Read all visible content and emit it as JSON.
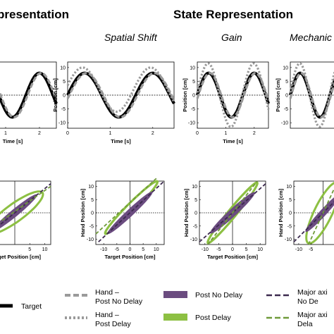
{
  "titles": {
    "left_cut": "presentation",
    "center": "State Representation",
    "col2": "Spatial Shift",
    "col3": "Gain",
    "col4_cut": "Mechanic"
  },
  "colors": {
    "target": "#000000",
    "hand": "#9a9a9a",
    "post_no_delay": "#6b4c80",
    "post_delay": "#8dc043",
    "major_axis_no_delay": "#3c2a4e",
    "major_axis_delay": "#6f9a3a"
  },
  "chart_data": [
    {
      "type": "line",
      "panel": "time-col1-partial",
      "xlabel": "Time [s]",
      "x_ticks": [
        "1",
        "2"
      ],
      "series": [
        {
          "name": "Target",
          "style": "solid-thick",
          "amplitude": 8,
          "phase_shift": 0
        },
        {
          "name": "Hand – Post No Delay",
          "style": "dashed",
          "amplitude": 8,
          "phase_shift": 0.05
        }
      ]
    },
    {
      "type": "line",
      "panel": "time-spatial-shift",
      "xlabel": "Time [s]",
      "ylabel": "Position [cm]",
      "xlim": [
        0,
        2.5
      ],
      "ylim": [
        -12,
        12
      ],
      "x_ticks": [
        "0",
        "1",
        "2"
      ],
      "y_ticks": [
        "10",
        "5",
        "0",
        "-5",
        "-10"
      ],
      "series": [
        {
          "name": "Target",
          "style": "solid-thick",
          "amplitude": 8,
          "offset": 0,
          "phase_shift": 0
        },
        {
          "name": "Hand – Post No Delay",
          "style": "dashed",
          "amplitude": 8,
          "offset": 0,
          "phase_shift": 0.04
        },
        {
          "name": "Hand – Post Delay",
          "style": "dotted",
          "amplitude": 8,
          "offset": 2,
          "phase_shift": -0.05
        }
      ]
    },
    {
      "type": "line",
      "panel": "time-gain",
      "xlabel": "Time [s]",
      "ylabel": "Position [cm]",
      "xlim": [
        0,
        2.5
      ],
      "ylim": [
        -12,
        12
      ],
      "x_ticks": [
        "0",
        "1",
        "2"
      ],
      "y_ticks": [
        "10",
        "5",
        "0",
        "-5",
        "-10"
      ],
      "series": [
        {
          "name": "Target",
          "style": "solid-thick",
          "amplitude": 8,
          "offset": 0,
          "phase_shift": 0
        },
        {
          "name": "Hand – Post No Delay",
          "style": "dashed",
          "amplitude": 8,
          "offset": 0,
          "phase_shift": 0.04
        },
        {
          "name": "Hand – Post Delay",
          "style": "dotted",
          "amplitude": 11.5,
          "offset": 0,
          "phase_shift": -0.02
        }
      ]
    },
    {
      "type": "line",
      "panel": "time-col4-partial",
      "ylabel": "Position [cm]",
      "y_ticks": [
        "10",
        "5",
        "0",
        "-5",
        "-10"
      ]
    },
    {
      "type": "scatter",
      "panel": "state-col1-partial",
      "xlabel": "Target Position [cm]",
      "x_ticks": [
        "5",
        "10"
      ],
      "xlim": [
        -12,
        12
      ],
      "ylim": [
        -12,
        12
      ]
    },
    {
      "type": "scatter",
      "panel": "state-spatial-shift",
      "xlabel": "Target Position [cm]",
      "ylabel": "Hand Position [cm]",
      "xlim": [
        -13,
        13
      ],
      "ylim": [
        -12,
        12
      ],
      "x_ticks": [
        "-10",
        "-5",
        "0",
        "5",
        "10"
      ],
      "y_ticks": [
        "10",
        "5",
        "0",
        "-5",
        "-10"
      ]
    },
    {
      "type": "scatter",
      "panel": "state-gain",
      "xlabel": "Target Position [cm]",
      "ylabel": "Hand Position [cm]",
      "xlim": [
        -12,
        12
      ],
      "ylim": [
        -12,
        12
      ],
      "x_ticks": [
        "-10",
        "-5",
        "0",
        "5",
        "10"
      ],
      "y_ticks": [
        "10",
        "5",
        "0",
        "-5",
        "-10"
      ]
    },
    {
      "type": "scatter",
      "panel": "state-col4-partial",
      "ylabel": "Hand Position [cm]",
      "x_ticks": [
        "-10",
        "-5"
      ],
      "y_ticks": [
        "10",
        "5",
        "0",
        "-5",
        "-10"
      ]
    }
  ],
  "legend": {
    "target": "Target",
    "hand_no_delay_1": "Hand –",
    "hand_no_delay_2": "Post No Delay",
    "hand_delay_1": "Hand –",
    "hand_delay_2": "Post Delay",
    "post_no_delay": "Post No Delay",
    "post_delay": "Post Delay",
    "major_no_delay_1": "Major axi",
    "major_no_delay_2": "No De",
    "major_delay_1": "Major axi",
    "major_delay_2": "Dela"
  }
}
